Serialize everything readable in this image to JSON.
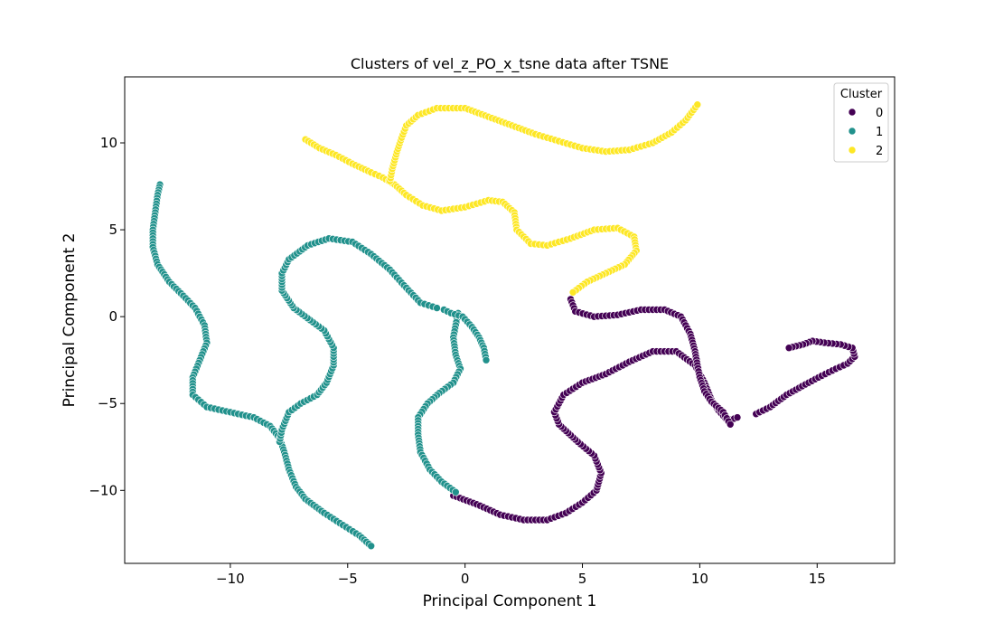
{
  "chart_data": {
    "type": "scatter",
    "title": "Clusters of vel_z_PO_x_tsne data after TSNE",
    "xlabel": "Principal Component 1",
    "ylabel": "Principal Component 2",
    "xlim": [
      -14.5,
      18.3
    ],
    "ylim": [
      -14.2,
      13.8
    ],
    "xticks": [
      -10,
      -5,
      0,
      5,
      10,
      15
    ],
    "xtick_labels": [
      "−10",
      "−5",
      "0",
      "5",
      "10",
      "15"
    ],
    "yticks": [
      -10,
      -5,
      0,
      5,
      10
    ],
    "ytick_labels": [
      "−10",
      "−5",
      "0",
      "5",
      "10"
    ],
    "grid": false,
    "legend": {
      "title": "Cluster",
      "placement": "top-right",
      "entries": [
        {
          "label": "0",
          "color": "#440154"
        },
        {
          "label": "1",
          "color": "#21918c"
        },
        {
          "label": "2",
          "color": "#fde725"
        }
      ]
    },
    "series": [
      {
        "name": "0",
        "color": "#440154",
        "curves": [
          [
            [
              -0.5,
              -10.3
            ],
            [
              0.5,
              -10.8
            ],
            [
              1.5,
              -11.4
            ],
            [
              2.5,
              -11.7
            ],
            [
              3.5,
              -11.7
            ],
            [
              4.3,
              -11.3
            ],
            [
              5.0,
              -10.7
            ],
            [
              5.6,
              -10.0
            ],
            [
              5.8,
              -9.0
            ],
            [
              5.5,
              -8.0
            ],
            [
              4.8,
              -7.2
            ],
            [
              4.0,
              -6.2
            ],
            [
              3.8,
              -5.5
            ],
            [
              4.2,
              -4.5
            ],
            [
              5.0,
              -3.8
            ],
            [
              6.0,
              -3.3
            ],
            [
              7.0,
              -2.6
            ],
            [
              8.0,
              -2.0
            ],
            [
              9.0,
              -2.0
            ],
            [
              9.8,
              -2.8
            ],
            [
              10.2,
              -3.8
            ],
            [
              10.5,
              -4.8
            ],
            [
              10.8,
              -5.4
            ],
            [
              11.2,
              -6.0
            ],
            [
              11.6,
              -5.8
            ]
          ],
          [
            [
              4.5,
              1.0
            ],
            [
              4.7,
              0.3
            ],
            [
              5.5,
              0.0
            ],
            [
              6.5,
              0.1
            ],
            [
              7.5,
              0.4
            ],
            [
              8.5,
              0.4
            ],
            [
              9.2,
              0.0
            ],
            [
              9.6,
              -1.0
            ],
            [
              9.8,
              -2.0
            ],
            [
              9.9,
              -2.8
            ],
            [
              10.0,
              -3.5
            ],
            [
              10.2,
              -4.3
            ],
            [
              10.5,
              -4.9
            ],
            [
              11.0,
              -5.5
            ],
            [
              11.3,
              -6.2
            ]
          ],
          [
            [
              12.4,
              -5.6
            ],
            [
              13.0,
              -5.2
            ],
            [
              13.7,
              -4.5
            ],
            [
              14.5,
              -3.9
            ],
            [
              15.2,
              -3.4
            ],
            [
              15.8,
              -3.0
            ],
            [
              16.3,
              -2.7
            ],
            [
              16.6,
              -2.3
            ],
            [
              16.5,
              -1.8
            ],
            [
              16.0,
              -1.6
            ],
            [
              15.3,
              -1.5
            ],
            [
              14.8,
              -1.4
            ],
            [
              14.4,
              -1.6
            ],
            [
              13.8,
              -1.8
            ]
          ]
        ]
      },
      {
        "name": "1",
        "color": "#21918c",
        "curves": [
          [
            [
              -13.0,
              7.6
            ],
            [
              -13.1,
              7.0
            ],
            [
              -13.2,
              6.0
            ],
            [
              -13.3,
              5.0
            ],
            [
              -13.3,
              4.0
            ],
            [
              -13.1,
              3.0
            ],
            [
              -12.6,
              2.0
            ],
            [
              -12.0,
              1.2
            ],
            [
              -11.5,
              0.5
            ],
            [
              -11.1,
              -0.5
            ],
            [
              -11.0,
              -1.5
            ],
            [
              -11.3,
              -2.5
            ],
            [
              -11.6,
              -3.5
            ],
            [
              -11.6,
              -4.5
            ],
            [
              -11.0,
              -5.2
            ],
            [
              -10.0,
              -5.5
            ],
            [
              -9.0,
              -5.8
            ],
            [
              -8.3,
              -6.3
            ],
            [
              -7.9,
              -7.0
            ],
            [
              -7.7,
              -7.8
            ],
            [
              -7.5,
              -8.8
            ],
            [
              -7.2,
              -9.8
            ],
            [
              -6.8,
              -10.5
            ],
            [
              -6.0,
              -11.3
            ],
            [
              -5.2,
              -12.0
            ],
            [
              -4.5,
              -12.6
            ],
            [
              -4.0,
              -13.2
            ]
          ],
          [
            [
              -7.9,
              -7.2
            ],
            [
              -7.8,
              -6.5
            ],
            [
              -7.5,
              -5.5
            ],
            [
              -7.0,
              -5.0
            ],
            [
              -6.3,
              -4.5
            ],
            [
              -5.9,
              -3.8
            ],
            [
              -5.6,
              -2.8
            ],
            [
              -5.6,
              -1.8
            ],
            [
              -6.0,
              -0.8
            ],
            [
              -6.6,
              -0.2
            ],
            [
              -7.3,
              0.5
            ],
            [
              -7.8,
              1.5
            ],
            [
              -7.8,
              2.5
            ],
            [
              -7.5,
              3.3
            ],
            [
              -6.7,
              4.1
            ],
            [
              -5.8,
              4.5
            ],
            [
              -4.8,
              4.3
            ],
            [
              -4.0,
              3.6
            ],
            [
              -3.2,
              2.7
            ],
            [
              -2.6,
              1.8
            ],
            [
              -1.9,
              0.8
            ],
            [
              -1.2,
              0.5
            ]
          ],
          [
            [
              -0.3,
              0.2
            ],
            [
              -0.4,
              -0.5
            ],
            [
              -0.5,
              -1.2
            ],
            [
              -0.4,
              -2.2
            ],
            [
              -0.2,
              -3.0
            ],
            [
              -0.5,
              -3.8
            ],
            [
              -1.1,
              -4.4
            ],
            [
              -1.6,
              -5.0
            ],
            [
              -2.0,
              -5.8
            ],
            [
              -2.0,
              -6.8
            ],
            [
              -1.9,
              -7.8
            ],
            [
              -1.5,
              -8.8
            ],
            [
              -1.0,
              -9.5
            ],
            [
              -0.4,
              -10.1
            ]
          ],
          [
            [
              -0.9,
              0.4
            ],
            [
              -0.6,
              0.2
            ],
            [
              -0.1,
              0.0
            ],
            [
              0.3,
              -0.6
            ],
            [
              0.6,
              -1.2
            ],
            [
              0.8,
              -1.8
            ],
            [
              0.9,
              -2.5
            ]
          ]
        ]
      },
      {
        "name": "2",
        "color": "#fde725",
        "curves": [
          [
            [
              -6.8,
              10.2
            ],
            [
              -6.2,
              9.7
            ],
            [
              -5.5,
              9.3
            ],
            [
              -4.8,
              8.8
            ],
            [
              -4.0,
              8.3
            ],
            [
              -3.5,
              8.0
            ],
            [
              -3.0,
              7.6
            ],
            [
              -2.5,
              7.0
            ],
            [
              -1.8,
              6.4
            ],
            [
              -1.0,
              6.1
            ],
            [
              0.0,
              6.3
            ],
            [
              1.0,
              6.7
            ],
            [
              1.6,
              6.6
            ],
            [
              2.1,
              6.0
            ],
            [
              2.2,
              5.0
            ],
            [
              2.8,
              4.2
            ],
            [
              3.5,
              4.1
            ],
            [
              4.5,
              4.5
            ],
            [
              5.5,
              5.0
            ],
            [
              6.5,
              5.1
            ],
            [
              7.2,
              4.6
            ],
            [
              7.3,
              3.8
            ],
            [
              6.8,
              3.0
            ],
            [
              6.0,
              2.5
            ],
            [
              5.2,
              2.0
            ],
            [
              4.6,
              1.4
            ]
          ],
          [
            [
              -3.2,
              7.8
            ],
            [
              -3.1,
              8.5
            ],
            [
              -2.9,
              9.5
            ],
            [
              -2.7,
              10.3
            ],
            [
              -2.5,
              11.0
            ],
            [
              -2.0,
              11.6
            ],
            [
              -1.2,
              12.0
            ],
            [
              0.0,
              12.0
            ],
            [
              1.0,
              11.5
            ],
            [
              2.0,
              11.0
            ],
            [
              3.0,
              10.5
            ],
            [
              4.0,
              10.1
            ],
            [
              5.0,
              9.7
            ],
            [
              6.0,
              9.5
            ],
            [
              7.0,
              9.6
            ],
            [
              8.0,
              10.0
            ],
            [
              8.8,
              10.6
            ],
            [
              9.4,
              11.3
            ],
            [
              9.9,
              12.2
            ]
          ]
        ]
      }
    ]
  }
}
